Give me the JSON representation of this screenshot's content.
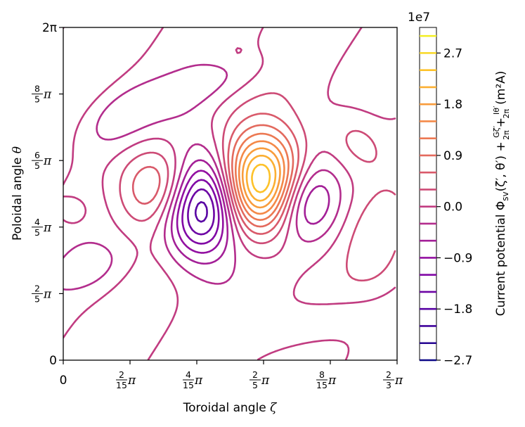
{
  "chart_data": {
    "type": "contour",
    "colormap": "plasma",
    "xlabel": "Toroidal angle ζ",
    "ylabel": "Poloidal angle θ",
    "xlim": [
      0,
      "2/3 π"
    ],
    "ylim": [
      0,
      "2π"
    ],
    "x_ticks": [
      {
        "num": "",
        "den": "",
        "pi": "",
        "plain": "0"
      },
      {
        "num": "2",
        "den": "15",
        "pi": "π",
        "plain": ""
      },
      {
        "num": "4",
        "den": "15",
        "pi": "π",
        "plain": ""
      },
      {
        "num": "2",
        "den": "5",
        "pi": "π",
        "plain": ""
      },
      {
        "num": "8",
        "den": "15",
        "pi": "π",
        "plain": ""
      },
      {
        "num": "2",
        "den": "3",
        "pi": "π",
        "plain": ""
      }
    ],
    "y_ticks": [
      {
        "num": "",
        "den": "",
        "pi": "",
        "plain": "0"
      },
      {
        "num": "2",
        "den": "5",
        "pi": "π",
        "plain": ""
      },
      {
        "num": "4",
        "den": "5",
        "pi": "π",
        "plain": ""
      },
      {
        "num": "6",
        "den": "5",
        "pi": "π",
        "plain": ""
      },
      {
        "num": "8",
        "den": "5",
        "pi": "π",
        "plain": ""
      },
      {
        "num": "",
        "den": "",
        "pi": "",
        "plain": "2π"
      }
    ],
    "colorbar": {
      "label_lead": "Current potential Φ",
      "label_sub": "sv",
      "label_args": "(ζ′, θ′) + ",
      "frac1_num": "Gζ′",
      "frac1_den": "2π",
      "plus": "+",
      "frac2_num": "Iθ′",
      "frac2_den": "2π",
      "label_units": "(m²A)",
      "exponent": "1e7",
      "tick_labels": [
        "2.7",
        "1.8",
        "0.9",
        "0.0",
        "−0.9",
        "−1.8",
        "−2.7"
      ],
      "tick_values": [
        2.7,
        1.8,
        0.9,
        0.0,
        -0.9,
        -1.8,
        -2.7
      ],
      "range": [
        -2.7,
        3.15
      ],
      "level_step": 0.3
    }
  }
}
